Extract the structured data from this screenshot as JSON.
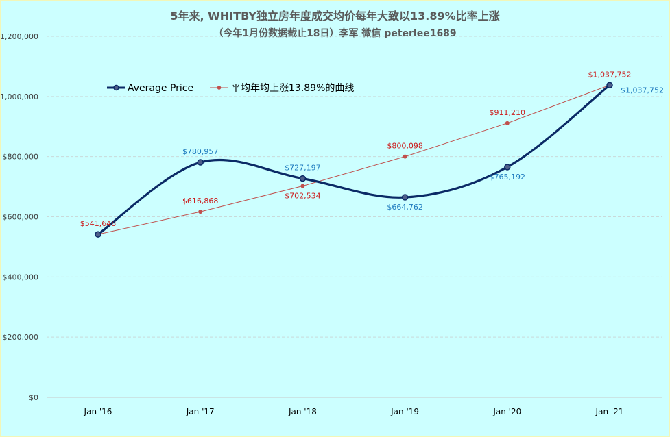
{
  "chart_data": {
    "type": "line",
    "title": "5年来, WHITBY独立房年度成交均价每年大致以13.89%比率上涨",
    "subtitle": "（今年1月份数据截止18日）李军 微信 peterlee1689",
    "categories": [
      "Jan '16",
      "Jan '17",
      "Jan '18",
      "Jan '19",
      "Jan '20",
      "Jan '21"
    ],
    "ylim": [
      0,
      1200000
    ],
    "yticks": [
      0,
      200000,
      400000,
      600000,
      800000,
      1000000,
      1200000
    ],
    "ytick_labels": [
      "$0",
      "$200,000",
      "$400,000",
      "$600,000",
      "$800,000",
      "$1,000,000",
      "$1,200,000"
    ],
    "grid": true,
    "legend_position": "top-left",
    "series": [
      {
        "name": "Average Price",
        "values": [
          541648,
          780957,
          727197,
          664762,
          765192,
          1037752
        ],
        "labels": [
          "",
          "$780,957",
          "$727,197",
          "$664,762",
          "$765,192",
          "$1,037,752"
        ],
        "label_pos": [
          "above",
          "above",
          "above",
          "below",
          "below",
          "right"
        ],
        "color": "#0b2a66",
        "smooth": true
      },
      {
        "name": "平均年均上涨13.89%的曲线",
        "values": [
          541648,
          616868,
          702534,
          800098,
          911210,
          1037752
        ],
        "labels": [
          "$541,648",
          "$616,868",
          "$702,534",
          "$800,098",
          "$911,210",
          "$1,037,752"
        ],
        "label_pos": [
          "above",
          "above",
          "below",
          "above",
          "above",
          "above"
        ],
        "color": "#c0504d",
        "smooth": false
      }
    ]
  }
}
